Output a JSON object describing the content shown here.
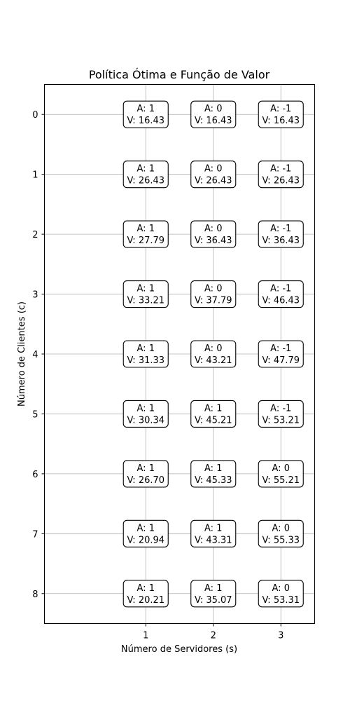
{
  "chart_data": {
    "type": "table",
    "title": "Política Ótima e Função de Valor",
    "xlabel": "Número de Servidores (s)",
    "ylabel": "Número de Clientes (c)",
    "x": [
      1,
      2,
      3
    ],
    "y": [
      0,
      1,
      2,
      3,
      4,
      5,
      6,
      7,
      8
    ],
    "xlim": [
      -0.5,
      3.5
    ],
    "ylim": [
      8.5,
      -0.5
    ],
    "y_inverted": true,
    "grid": true,
    "action_prefix": "A: ",
    "value_prefix": "V: ",
    "actions": [
      [
        "1",
        "0",
        "-1"
      ],
      [
        "1",
        "0",
        "-1"
      ],
      [
        "1",
        "0",
        "-1"
      ],
      [
        "1",
        "0",
        "-1"
      ],
      [
        "1",
        "0",
        "-1"
      ],
      [
        "1",
        "1",
        "-1"
      ],
      [
        "1",
        "1",
        "0"
      ],
      [
        "1",
        "1",
        "0"
      ],
      [
        "1",
        "1",
        "0"
      ]
    ],
    "values": [
      [
        "16.43",
        "16.43",
        "16.43"
      ],
      [
        "26.43",
        "26.43",
        "26.43"
      ],
      [
        "27.79",
        "36.43",
        "36.43"
      ],
      [
        "33.21",
        "37.79",
        "46.43"
      ],
      [
        "31.33",
        "43.21",
        "47.79"
      ],
      [
        "30.34",
        "45.21",
        "53.21"
      ],
      [
        "26.70",
        "45.33",
        "55.21"
      ],
      [
        "20.94",
        "43.31",
        "55.33"
      ],
      [
        "20.21",
        "35.07",
        "53.31"
      ]
    ]
  }
}
